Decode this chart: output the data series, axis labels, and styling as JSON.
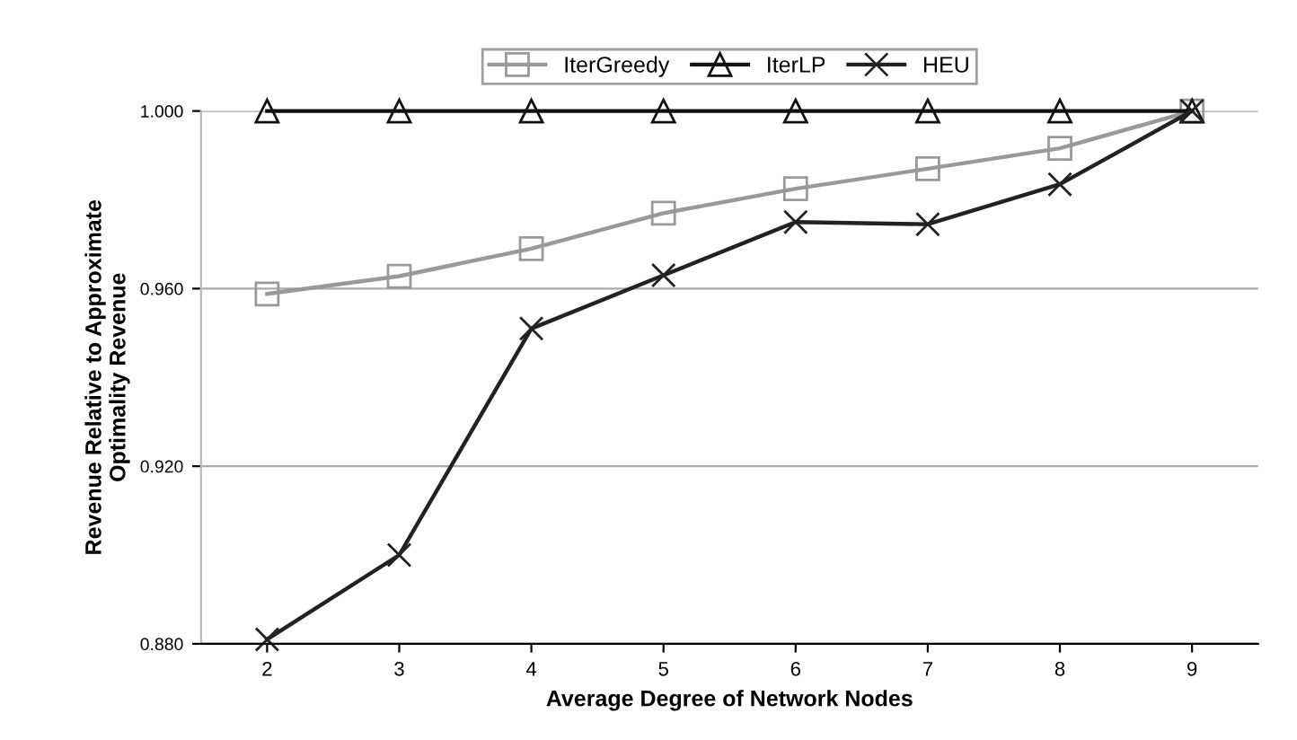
{
  "chart_data": {
    "type": "line",
    "xlabel": "Average Degree of Network Nodes",
    "ylabel": "Revenue Relative to Approximate\nOptimality Revenue",
    "categories": [
      "2",
      "3",
      "4",
      "5",
      "6",
      "7",
      "8",
      "9"
    ],
    "series": [
      {
        "name": "IterGreedy",
        "color": "#999999",
        "marker": "square",
        "values": [
          0.9588,
          0.9628,
          0.969,
          0.977,
          0.9825,
          0.987,
          0.9916,
          1.0
        ]
      },
      {
        "name": "IterLP",
        "color": "#111111",
        "marker": "triangle",
        "values": [
          1.0,
          1.0,
          1.0,
          1.0,
          1.0,
          1.0,
          1.0,
          1.0
        ]
      },
      {
        "name": "HEU",
        "color": "#222222",
        "marker": "cross",
        "values": [
          0.881,
          0.9,
          0.951,
          0.963,
          0.975,
          0.9745,
          0.9835,
          1.0
        ]
      }
    ],
    "ylim": [
      0.88,
      1.0
    ],
    "yticks": [
      {
        "value": 0.88,
        "label": "0.880"
      },
      {
        "value": 0.92,
        "label": "0.920"
      },
      {
        "value": 0.96,
        "label": "0.960"
      },
      {
        "value": 1.0,
        "label": "1.000"
      }
    ],
    "grid": "y",
    "legend": "top",
    "line_style": "solid"
  }
}
